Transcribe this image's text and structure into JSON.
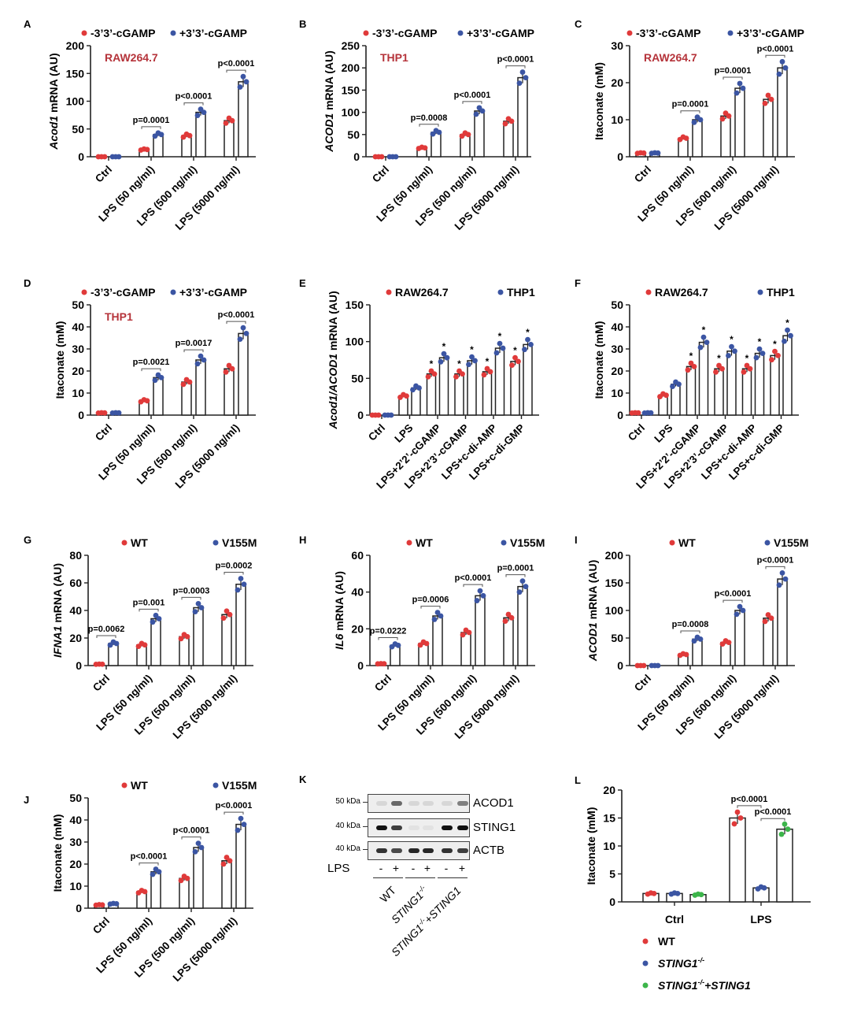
{
  "colors": {
    "red": "#e03a3a",
    "blue": "#3b55a3",
    "green": "#3cb54a",
    "cell_label": "#b5333a"
  },
  "chart_data": [
    {
      "panel": "A",
      "type": "bar",
      "ylabel": {
        "italic": "Acod1",
        "rest": " mRNA (AU)"
      },
      "ylim": [
        0,
        200
      ],
      "yticks": [
        0,
        50,
        100,
        150,
        200
      ],
      "cell_label": "RAW264.7",
      "categories": [
        "Ctrl",
        "LPS (50 ng/ml)",
        "LPS (500 ng/ml)",
        "LPS (5000 ng/ml)"
      ],
      "series": [
        {
          "name": "-3’3’-cGAMP",
          "color": "red",
          "values": [
            0,
            13,
            38,
            65
          ]
        },
        {
          "name": "+3’3’-cGAMP",
          "color": "blue",
          "values": [
            0,
            40,
            80,
            135
          ]
        }
      ],
      "annotations": [
        "",
        "p=0.0001",
        "p<0.0001",
        "p<0.0001"
      ]
    },
    {
      "panel": "B",
      "type": "bar",
      "ylabel": {
        "italic": "ACOD1",
        "rest": " mRNA (AU)"
      },
      "ylim": [
        0,
        250
      ],
      "yticks": [
        0,
        50,
        100,
        150,
        200,
        250
      ],
      "cell_label": "THP1",
      "categories": [
        "Ctrl",
        "LPS (50 ng/ml)",
        "LPS (500 ng/ml)",
        "LPS (5000 ng/ml)"
      ],
      "series": [
        {
          "name": "-3’3’-cGAMP",
          "color": "red",
          "values": [
            0,
            20,
            50,
            80
          ]
        },
        {
          "name": "+3’3’-cGAMP",
          "color": "blue",
          "values": [
            0,
            55,
            103,
            178
          ]
        }
      ],
      "annotations": [
        "",
        "p=0.0008",
        "p<0.0001",
        "p<0.0001"
      ]
    },
    {
      "panel": "C",
      "type": "bar",
      "ylabel": {
        "italic": "",
        "rest": "Itaconate (mM)"
      },
      "ylim": [
        0,
        30
      ],
      "yticks": [
        0,
        10,
        20,
        30
      ],
      "cell_label": "RAW264.7",
      "categories": [
        "Ctrl",
        "LPS (50 ng/ml)",
        "LPS (500 ng/ml)",
        "LPS (5000 ng/ml)"
      ],
      "series": [
        {
          "name": "-3’3’-cGAMP",
          "color": "red",
          "values": [
            1,
            5,
            11,
            15.5
          ]
        },
        {
          "name": "+3’3’-cGAMP",
          "color": "blue",
          "values": [
            1,
            10,
            18.5,
            24
          ]
        }
      ],
      "annotations": [
        "",
        "p=0.0001",
        "p=0.0001",
        "p<0.0001"
      ]
    },
    {
      "panel": "D",
      "type": "bar",
      "ylabel": {
        "italic": "",
        "rest": "Itaconate (mM)"
      },
      "ylim": [
        0,
        50
      ],
      "yticks": [
        0,
        10,
        20,
        30,
        40,
        50
      ],
      "cell_label": "THP1",
      "categories": [
        "Ctrl",
        "LPS (50 ng/ml)",
        "LPS (500 ng/ml)",
        "LPS (5000 ng/ml)"
      ],
      "series": [
        {
          "name": "-3’3’-cGAMP",
          "color": "red",
          "values": [
            1,
            6.5,
            15,
            21
          ]
        },
        {
          "name": "+3’3’-cGAMP",
          "color": "blue",
          "values": [
            1,
            17,
            25,
            37
          ]
        }
      ],
      "annotations": [
        "",
        "p=0.0021",
        "p=0.0017",
        "p<0.0001"
      ]
    },
    {
      "panel": "E",
      "type": "bar",
      "ylabel": {
        "italic": "Acod1/ACOD1",
        "rest": " mRNA (AU)"
      },
      "ylim": [
        0,
        150
      ],
      "yticks": [
        0,
        50,
        100,
        150
      ],
      "cell_label": "",
      "categories": [
        "Ctrl",
        "LPS",
        "LPS+2’2’-cGAMP",
        "LPS+2’3’-cGAMP",
        "LPS+c-di-AMP",
        "LPS+c-di-GMP"
      ],
      "series": [
        {
          "name": "RAW264.7",
          "color": "red",
          "values": [
            0,
            26,
            56,
            56,
            59,
            73
          ]
        },
        {
          "name": "THP1",
          "color": "blue",
          "values": [
            0,
            37,
            78,
            74,
            91,
            96
          ]
        }
      ],
      "stars": [
        false,
        false,
        true,
        true,
        true,
        true
      ],
      "star_label": "*"
    },
    {
      "panel": "F",
      "type": "bar",
      "ylabel": {
        "italic": "",
        "rest": "Itaconate (mM)"
      },
      "ylim": [
        0,
        50
      ],
      "yticks": [
        0,
        10,
        20,
        30,
        40,
        50
      ],
      "cell_label": "",
      "categories": [
        "Ctrl",
        "LPS",
        "LPS+2’2’-cGAMP",
        "LPS+2’3’-cGAMP",
        "LPS+c-di-AMP",
        "LPS+c-di-GMP"
      ],
      "series": [
        {
          "name": "RAW264.7",
          "color": "red",
          "values": [
            1,
            9,
            22,
            21,
            21,
            27
          ]
        },
        {
          "name": "THP1",
          "color": "blue",
          "values": [
            1,
            14,
            33,
            29,
            28,
            36
          ]
        }
      ],
      "stars": [
        false,
        false,
        true,
        true,
        true,
        true
      ],
      "star_label": "*"
    },
    {
      "panel": "G",
      "type": "bar",
      "ylabel": {
        "italic": "IFNA1",
        "rest": " mRNA (AU)"
      },
      "ylim": [
        0,
        80
      ],
      "yticks": [
        0,
        20,
        40,
        60,
        80
      ],
      "cell_label": "",
      "categories": [
        "Ctrl",
        "LPS (50 ng/ml)",
        "LPS (500 ng/ml)",
        "LPS (5000 ng/ml)"
      ],
      "series": [
        {
          "name": "WT",
          "color": "red",
          "values": [
            1,
            15,
            21,
            37
          ]
        },
        {
          "name": "V155M",
          "color": "blue",
          "values": [
            16,
            34,
            42,
            59
          ]
        }
      ],
      "annotations": [
        "p=0.0062",
        "p=0.001",
        "p=0.0003",
        "p=0.0002"
      ]
    },
    {
      "panel": "H",
      "type": "bar",
      "ylabel": {
        "italic": "IL6",
        "rest": " mRNA (AU)"
      },
      "ylim": [
        0,
        60
      ],
      "yticks": [
        0,
        20,
        40,
        60
      ],
      "cell_label": "",
      "categories": [
        "Ctrl",
        "LPS (50 ng/ml)",
        "LPS (500 ng/ml)",
        "LPS (5000 ng/ml)"
      ],
      "series": [
        {
          "name": "WT",
          "color": "red",
          "values": [
            1,
            12,
            18,
            26
          ]
        },
        {
          "name": "V155M",
          "color": "blue",
          "values": [
            11,
            27,
            38,
            43
          ]
        }
      ],
      "annotations": [
        "p=0.0222",
        "p=0.0006",
        "p<0.0001",
        "p=0.0001"
      ]
    },
    {
      "panel": "I",
      "type": "bar",
      "ylabel": {
        "italic": "ACOD1",
        "rest": " mRNA (AU)"
      },
      "ylim": [
        0,
        200
      ],
      "yticks": [
        0,
        50,
        100,
        150,
        200
      ],
      "cell_label": "",
      "categories": [
        "Ctrl",
        "LPS (50 ng/ml)",
        "LPS (500 ng/ml)",
        "LPS (5000 ng/ml)"
      ],
      "series": [
        {
          "name": "WT",
          "color": "red",
          "values": [
            0,
            20,
            42,
            86
          ]
        },
        {
          "name": "V155M",
          "color": "blue",
          "values": [
            0,
            48,
            100,
            157
          ]
        }
      ],
      "annotations": [
        "",
        "p=0.0008",
        "p<0.0001",
        "p<0.0001"
      ]
    },
    {
      "panel": "J",
      "type": "bar",
      "ylabel": {
        "italic": "",
        "rest": "Itaconate (mM)"
      },
      "ylim": [
        0,
        50
      ],
      "yticks": [
        0,
        10,
        20,
        30,
        40,
        50
      ],
      "cell_label": "",
      "categories": [
        "Ctrl",
        "LPS (50 ng/ml)",
        "LPS (500 ng/ml)",
        "LPS (5000 ng/ml)"
      ],
      "series": [
        {
          "name": "WT",
          "color": "red",
          "values": [
            1.5,
            7.5,
            13.5,
            21.5
          ]
        },
        {
          "name": "V155M",
          "color": "blue",
          "values": [
            2,
            16.5,
            27.5,
            38
          ]
        }
      ],
      "annotations": [
        "",
        "p<0.0001",
        "p<0.0001",
        "p<0.0001"
      ]
    },
    {
      "panel": "L",
      "type": "bar",
      "ylabel": {
        "italic": "",
        "rest": "Itaconate (mM)"
      },
      "ylim": [
        0,
        20
      ],
      "yticks": [
        0,
        5,
        10,
        15,
        20
      ],
      "cell_label": "",
      "categories": [
        "Ctrl",
        "LPS"
      ],
      "horizontal_labels": true,
      "series": [
        {
          "name": "WT",
          "sup": "",
          "color": "red",
          "values": [
            1.5,
            15
          ]
        },
        {
          "name": "STING1",
          "sup": "-/-",
          "color": "blue",
          "values": [
            1.5,
            2.5
          ]
        },
        {
          "name": "STING1",
          "sup": "-/-",
          "suffix": "+STING1",
          "color": "green",
          "values": [
            1.3,
            13
          ]
        }
      ],
      "comparisons": [
        {
          "group": 1,
          "from": 0,
          "to": 1,
          "label": "p<0.0001"
        },
        {
          "group": 1,
          "from": 1,
          "to": 2,
          "label": "p<0.0001"
        }
      ]
    }
  ],
  "blot": {
    "panel": "K",
    "rows": [
      {
        "protein": "ACOD1",
        "marker": "50 kDa",
        "bands": [
          0.1,
          0.6,
          0.1,
          0.1,
          0.1,
          0.5
        ]
      },
      {
        "protein": "STING1",
        "marker": "40 kDa",
        "bands": [
          1,
          0.8,
          0.05,
          0.05,
          1,
          1
        ]
      },
      {
        "protein": "ACTB",
        "marker": "40 kDa",
        "bands": [
          0.85,
          0.75,
          0.9,
          0.9,
          0.85,
          0.8
        ]
      }
    ],
    "lps_label": "LPS",
    "lps": [
      "-",
      "+",
      "-",
      "+",
      "-",
      "+"
    ],
    "groups": [
      {
        "base": "WT",
        "sup": "",
        "suffix": ""
      },
      {
        "base": "STING1",
        "sup": "-/-",
        "suffix": ""
      },
      {
        "base": "STING1",
        "sup": "-/-",
        "suffix": "+STING1"
      }
    ]
  }
}
